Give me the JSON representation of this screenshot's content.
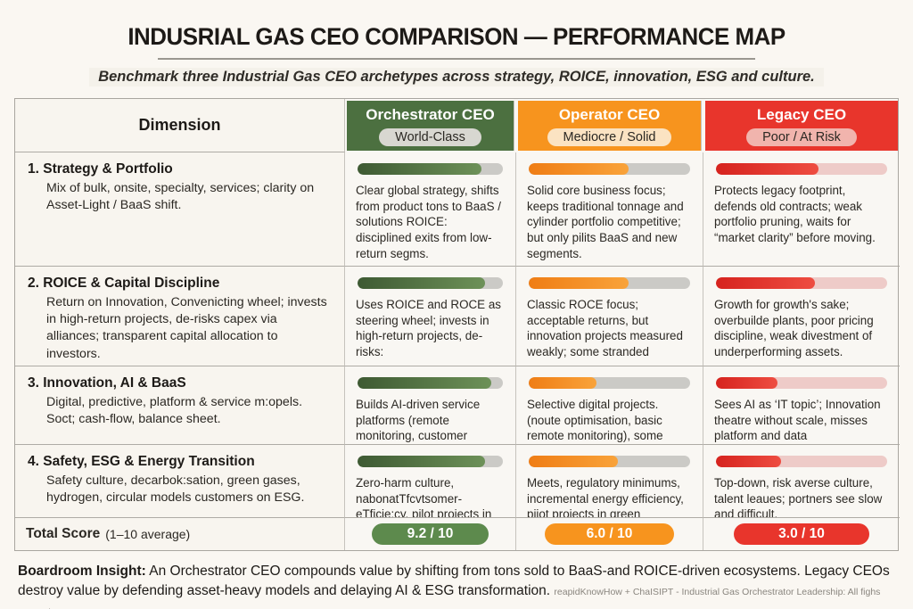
{
  "page": {
    "title": "INDUSRIAL GAS CEO COMPARISON — PERFORMANCE MAP",
    "subtitle": "Benchmark three Industrial Gas CEO archetypes across strategy, ROICE, innovation, ESG and culture."
  },
  "colors": {
    "orchestrator_green": "#4c7040",
    "operator_orange": "#f7941e",
    "legacy_red": "#e8352c",
    "page_background": "#faf7f2"
  },
  "table": {
    "dimension_header": "Dimension",
    "columns": [
      {
        "title": "Orchestrator CEO",
        "badge": "World-Class"
      },
      {
        "title": "Operator CEO",
        "badge": "Mediocre / Solid"
      },
      {
        "title": "Legacy CEO",
        "badge": "Poor / At Risk"
      }
    ],
    "rows": [
      {
        "dimension_title": "1. Strategy & Portfolio",
        "dimension_desc": "Mix of bulk, onsite, specialty, services; clarity on Asset-Light / BaaS shift.",
        "cells": [
          {
            "bar_pct": 85,
            "text": "Clear global strategy, shifts from product tons to BaaS / solutions ROICE: disciplined exits from low-return segms."
          },
          {
            "bar_pct": 62,
            "text": "Solid core business focus; keeps traditional tonnage and cylinder portfolio competitive; but only pilits BaaS and new segments."
          },
          {
            "bar_pct": 60,
            "text": "Protects legacy footprint, defends old contracts; weak portfolio pruning, waits for “market clarity” before moving."
          }
        ]
      },
      {
        "dimension_title": "2. ROICE & Capital Discipline",
        "dimension_desc": "Return on Innovation, Convenicting wheel; invests in high-return projects, de-risks capex via alliances; transparent capital allocation to investors.",
        "cells": [
          {
            "bar_pct": 88,
            "text": "Uses ROICE and ROCE as steering wheel; invests in high-return projects, de-risks:"
          },
          {
            "bar_pct": 62,
            "text": "Classic ROCE focus; acceptable returns, but innovation projects measured weakly; some stranded"
          },
          {
            "bar_pct": 58,
            "text": "Growth for growth's sake; overbuilde plants, poor pricing discipline, weak divestment of underperforming assets."
          }
        ]
      },
      {
        "dimension_title": "3. Innovation, AI & BaaS",
        "dimension_desc": "Digital, predictive, platform & service m:opels. Soct; cash-flow, balance sheet.",
        "cells": [
          {
            "bar_pct": 92,
            "text": "Builds AI-driven service platforms (remote monitoring, customer portals), creates"
          },
          {
            "bar_pct": 42,
            "text": "Selective digital projects. (noute optimisation, basic remote monitoring), some stranded"
          },
          {
            "bar_pct": 36,
            "text": "Sees AI as ‘IT topic’; Innovation theatre without scale, misses platform and data"
          }
        ]
      },
      {
        "dimension_title": "4. Safety, ESG & Energy Transition",
        "dimension_desc": "Safety culture, decarbok:sation, green gases, hydrogen, circular models customers on ESG.",
        "cells": [
          {
            "bar_pct": 88,
            "text": "Zero-harm culture, nabonatTfcvtsomer-eTficie:cy, pilot projects in"
          },
          {
            "bar_pct": 55,
            "text": "Meets, regulatory minimums, incremental energy efficiency, piiot projects in green hydrogen:"
          },
          {
            "bar_pct": 38,
            "text": "Top-down, risk averse culture, talent leaues; portners see slow and difficult."
          }
        ]
      }
    ],
    "total_row": {
      "label": "Total Score",
      "label_suffix": "(1–10 average)",
      "scores": [
        "9.2 / 10",
        "6.0 / 10",
        "3.0 / 10"
      ]
    }
  },
  "footer": {
    "insight_label": "Boardroom Insight:",
    "insight_text": "An Orchestrator CEO compounds value by shifting from tons sold to BaaS-and ROICE-driven ecosystems. Legacy CEOs destroy value by defending asset-heavy models and delaying AI & ESG transformation.",
    "attribution": "reapidKnowHow + ChaISIPT - Industrial Gas Orchestrator Leadership: All fighs Retrved"
  }
}
